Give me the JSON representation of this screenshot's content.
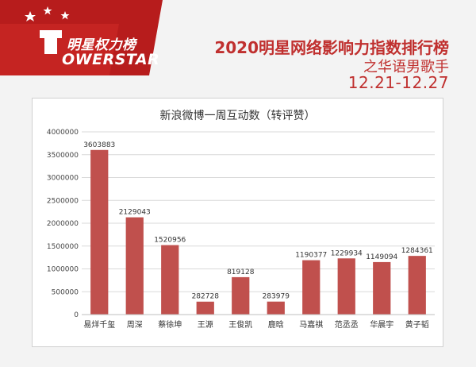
{
  "header": {
    "logo_cn": "明星权力榜",
    "logo_en": "OWERSTAR",
    "title": "2020明星网络影响力指数排行榜",
    "subtitle": "之华语男歌手",
    "date_range": "12.21-12.27"
  },
  "colors": {
    "brand_red": "#c0302f",
    "bar": "#c0504d",
    "logo_bg": "#b71c1c"
  },
  "chart_data": {
    "type": "bar",
    "title": "新浪微博一周互动数（转评赞）",
    "xlabel": "",
    "ylabel": "",
    "ylim": [
      0,
      4000000
    ],
    "yticks": [
      0,
      500000,
      1000000,
      1500000,
      2000000,
      2500000,
      3000000,
      3500000,
      4000000
    ],
    "grid": true,
    "categories": [
      "易烊千玺",
      "周深",
      "蔡徐坤",
      "王源",
      "王俊凯",
      "鹿晗",
      "马嘉祺",
      "范丞丞",
      "华晨宇",
      "黄子韬"
    ],
    "values": [
      3603883,
      2129043,
      1520956,
      282728,
      819128,
      283979,
      1190377,
      1229934,
      1149094,
      1284361
    ]
  }
}
